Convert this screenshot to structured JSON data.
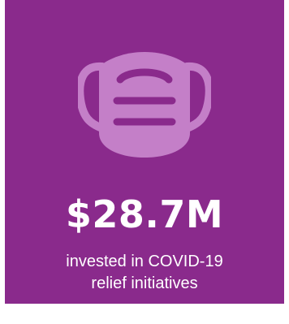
{
  "colors": {
    "background": "#8a2a8c",
    "icon": "#c47fc8",
    "text": "#ffffff"
  },
  "icon": "face-mask-icon",
  "stat": {
    "value": "$28.7M",
    "caption_line1": "invested in COVID-19",
    "caption_line2": "relief initiatives"
  }
}
